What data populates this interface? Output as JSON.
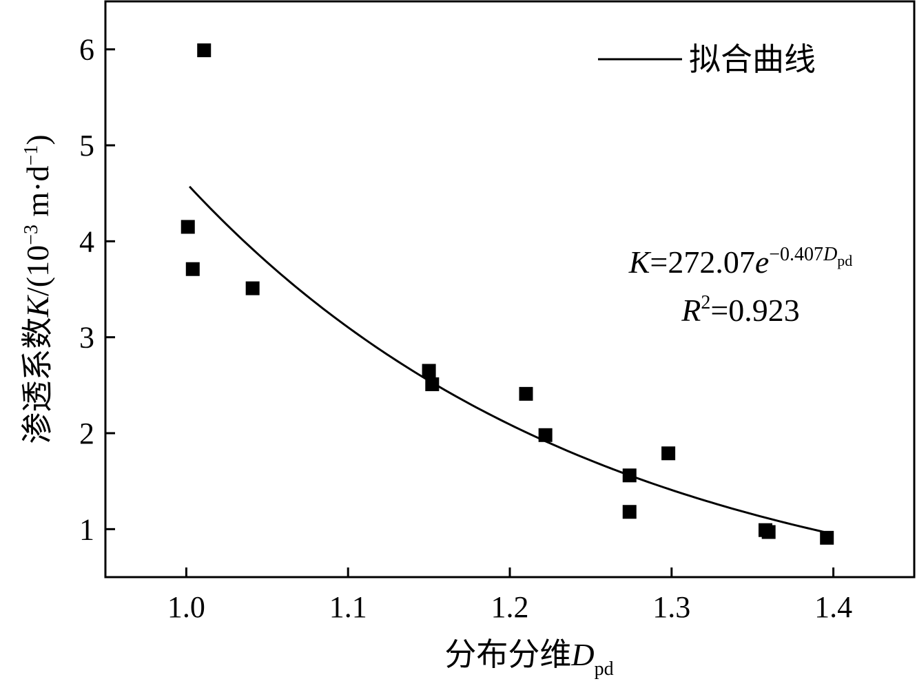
{
  "chart_data": {
    "type": "scatter",
    "xlabel": {
      "main": "分布分维",
      "var": "D",
      "sub": "pd"
    },
    "ylabel": {
      "main": "渗透系数",
      "var": "K",
      "rest": "/(10",
      "exp": "−3",
      "unit": " m·d",
      "unit_exp": "−1",
      "close": ")"
    },
    "xlim": [
      0.95,
      1.45
    ],
    "ylim": [
      0.5,
      6.5
    ],
    "x_ticks": [
      1.0,
      1.1,
      1.2,
      1.3,
      1.4
    ],
    "x_tick_labels": [
      "1.0",
      "1.1",
      "1.2",
      "1.3",
      "1.4"
    ],
    "y_ticks": [
      1,
      2,
      3,
      4,
      5,
      6
    ],
    "y_tick_labels": [
      "1",
      "2",
      "3",
      "4",
      "5",
      "6"
    ],
    "grid": false,
    "series": [
      {
        "kind": "points",
        "marker": "square",
        "x": [
          1.001,
          1.004,
          1.011,
          1.041,
          1.15,
          1.152,
          1.21,
          1.222,
          1.274,
          1.274,
          1.298,
          1.358,
          1.36,
          1.396
        ],
        "y": [
          4.15,
          3.71,
          5.99,
          3.51,
          2.65,
          2.51,
          2.41,
          1.98,
          1.56,
          1.18,
          1.79,
          0.99,
          0.97,
          0.91
        ]
      },
      {
        "kind": "fit",
        "name": "拟合曲线",
        "x_range": [
          1.002,
          1.397
        ],
        "model": "exponential"
      }
    ],
    "legend": {
      "position": "top-right",
      "entries": [
        "拟合曲线"
      ]
    },
    "annotation": {
      "equation": {
        "lhs": "K",
        "eq": "=272.07",
        "base": "e",
        "exp_coef": "−0.407",
        "exp_var": "D",
        "exp_sub": "pd"
      },
      "r2": {
        "var": "R",
        "exp": "2",
        "value": "=0.923"
      },
      "position": "right-middle"
    }
  },
  "colors": {
    "ink": "#000000",
    "background": "#ffffff"
  }
}
